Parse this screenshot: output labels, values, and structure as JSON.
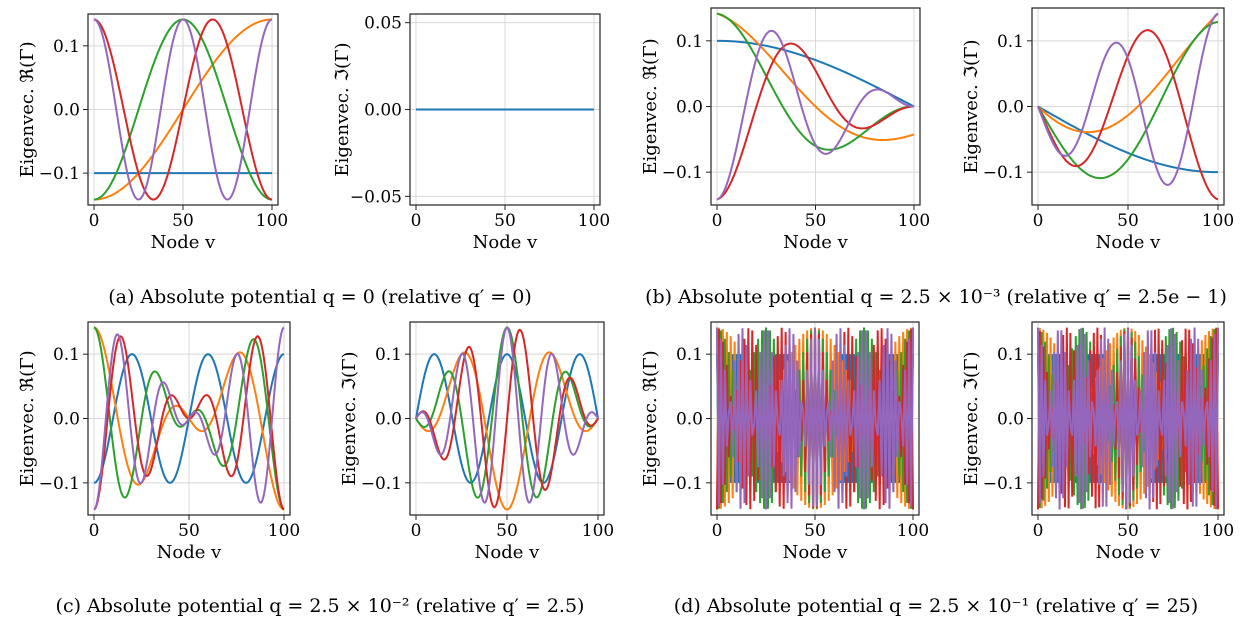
{
  "captions": [
    "(a) Absolute potential q = 0 (relative q′ = 0)",
    "(b) Absolute potential q = 2.5 × 10⁻³ (relative q′ = 2.5e − 1)",
    "(c) Absolute potential q = 2.5 × 10⁻² (relative q′ = 2.5)",
    "(d) Absolute potential q = 2.5 × 10⁻¹ (relative q′ = 25)"
  ],
  "colors": [
    "#1f77b4",
    "#ff7f0e",
    "#2ca02c",
    "#d62728",
    "#9467bd"
  ],
  "chart_data": [
    {
      "type": "line",
      "panel": "a-left",
      "xlabel": "Node v",
      "ylabel": "Eigenvec. ℜ(Γ)",
      "xlim": [
        0,
        100
      ],
      "ylim": [
        -0.15,
        0.15
      ],
      "xticks": [
        "0",
        "50",
        "100"
      ],
      "yticks": [
        "−0.1",
        "0.0",
        "0.1"
      ],
      "series": [
        {
          "values_at_x": {
            "0": -0.1,
            "100": -0.1
          }
        },
        {
          "values_at_x": {
            "0": -0.141,
            "50": 0.0,
            "100": 0.141
          }
        },
        {
          "values_at_x": {
            "0": -0.141,
            "50": 0.141,
            "100": -0.141
          }
        },
        {
          "values_at_x": {
            "0": 0.141,
            "33": -0.141,
            "67": 0.141,
            "100": -0.141
          }
        },
        {
          "values_at_x": {
            "0": 0.141,
            "25": -0.141,
            "50": 0.141,
            "75": -0.141,
            "100": 0.141
          }
        }
      ]
    },
    {
      "type": "line",
      "panel": "a-right",
      "xlabel": "Node v",
      "ylabel": "Eigenvec. ℑ(Γ)",
      "xlim": [
        0,
        100
      ],
      "ylim": [
        -0.055,
        0.055
      ],
      "xticks": [
        "0",
        "50",
        "100"
      ],
      "yticks": [
        "−0.05",
        "0.00",
        "0.05"
      ],
      "series": [
        {
          "values_at_x": {
            "0": 0.0,
            "100": 0.0
          }
        }
      ]
    },
    {
      "type": "line",
      "panel": "b-left",
      "xlabel": "Node v",
      "ylabel": "Eigenvec. ℜ(Γ)",
      "xlim": [
        0,
        100
      ],
      "ylim": [
        -0.15,
        0.15
      ],
      "xticks": [
        "0",
        "50",
        "100"
      ],
      "yticks": [
        "−0.1",
        "0.0",
        "0.1"
      ],
      "series": [
        {
          "values_at_x": {
            "0": 0.1,
            "50": 0.07,
            "100": 0.0
          }
        },
        {
          "values_at_x": {
            "0": 0.141,
            "50": 0.0,
            "75": -0.04,
            "100": 0.0
          }
        },
        {
          "values_at_x": {
            "0": 0.141,
            "48": -0.101,
            "100": 0.0
          }
        },
        {
          "values_at_x": {
            "0": -0.141,
            "32": 0.122,
            "66": -0.07,
            "100": 0.0
          }
        },
        {
          "values_at_x": {
            "0": -0.141,
            "24": 0.13,
            "50": -0.1,
            "74": 0.055,
            "100": 0.0
          }
        }
      ]
    },
    {
      "type": "line",
      "panel": "b-right",
      "xlabel": "Node v",
      "ylabel": "Eigenvec. ℑ(Γ)",
      "xlim": [
        0,
        100
      ],
      "ylim": [
        -0.15,
        0.15
      ],
      "xticks": [
        "0",
        "50",
        "100"
      ],
      "yticks": [
        "−0.1",
        "0.0",
        "0.1"
      ],
      "series": [
        {
          "values_at_x": {
            "0": 0.0,
            "50": -0.07,
            "100": -0.1
          }
        },
        {
          "values_at_x": {
            "0": 0.0,
            "25": -0.04,
            "50": 0.0,
            "100": 0.141
          }
        },
        {
          "values_at_x": {
            "0": 0.0,
            "52": 0.102,
            "100": -0.141
          }
        },
        {
          "values_at_x": {
            "0": 0.0,
            "34": -0.072,
            "68": 0.122,
            "100": -0.141
          }
        },
        {
          "values_at_x": {
            "0": 0.0,
            "50": 0.1,
            "76": -0.13,
            "100": 0.141
          }
        }
      ]
    },
    {
      "type": "line",
      "panel": "c-left",
      "xlabel": "Node v",
      "ylabel": "Eigenvec. ℜ(Γ)",
      "xlim": [
        0,
        100
      ],
      "ylim": [
        -0.15,
        0.15
      ],
      "xticks": [
        "0",
        "50",
        "100"
      ],
      "yticks": [
        "−0.1",
        "0.0",
        "0.1"
      ],
      "series": [
        {
          "values_at_x": {
            "0": -0.1,
            "20": 0.1,
            "40": -0.1,
            "60": 0.1,
            "80": -0.1,
            "100": 0.1
          }
        },
        {
          "values_at_x": {
            "0": 0.141,
            "25": -0.11,
            "50": 0.0,
            "75": 0.05,
            "100": -0.141
          }
        },
        {
          "values_at_x": {
            "0": 0.141,
            "17": -0.06,
            "33": 0.01,
            "50": 0.0,
            "67": 0.12,
            "100": -0.141
          }
        },
        {
          "values_at_x": {
            "0": -0.141,
            "30": 0.122,
            "50": 0.0,
            "100": 0.141
          }
        },
        {
          "values_at_x": {
            "0": -0.141,
            "20": -0.125,
            "50": 0.0,
            "85": 0.12,
            "100": 0.141
          }
        }
      ]
    },
    {
      "type": "line",
      "panel": "c-right",
      "xlabel": "Node v",
      "ylabel": "Eigenvec. ℑ(Γ)",
      "xlim": [
        0,
        100
      ],
      "ylim": [
        -0.15,
        0.15
      ],
      "xticks": [
        "0",
        "50",
        "100"
      ],
      "yticks": [
        "−0.1",
        "0.0",
        "0.1"
      ],
      "series": [
        {
          "values_at_x": {
            "0": 0.0,
            "10": 0.1,
            "30": -0.1,
            "50": 0.1,
            "70": -0.1,
            "90": 0.1,
            "100": 0.0
          }
        },
        {
          "values_at_x": {
            "0": 0.0,
            "12": -0.135,
            "50": 0.0,
            "90": 0.135,
            "100": 0.0
          }
        },
        {
          "values_at_x": {
            "0": 0.0,
            "10": -0.12,
            "50": 0.141,
            "90": -0.12,
            "100": 0.0
          }
        },
        {
          "values_at_x": {
            "0": 0.0,
            "12": 0.1,
            "30": 0.13,
            "50": 0.0,
            "70": -0.13,
            "100": 0.0
          }
        },
        {
          "values_at_x": {
            "0": 0.0,
            "15": 0.05,
            "32": 0.14,
            "50": -0.02,
            "85": 0.1,
            "100": 0.0
          }
        }
      ]
    },
    {
      "type": "line",
      "panel": "d-left",
      "xlabel": "Node v",
      "ylabel": "Eigenvec. ℜ(Γ)",
      "xlim": [
        0,
        100
      ],
      "ylim": [
        -0.15,
        0.15
      ],
      "xticks": [
        "0",
        "50",
        "100"
      ],
      "yticks": [
        "−0.1",
        "0.0",
        "0.1"
      ],
      "series": [
        {
          "values_at_x": {
            "0": 0.1,
            "100": -0.1
          }
        },
        {
          "values_at_x": {
            "0": 0.141,
            "100": -0.141
          }
        },
        {
          "values_at_x": {
            "0": -0.141,
            "100": 0.141
          }
        },
        {
          "values_at_x": {
            "0": -0.141,
            "100": 0.141
          }
        },
        {
          "values_at_x": {
            "0": 0.141,
            "100": -0.141
          }
        }
      ]
    },
    {
      "type": "line",
      "panel": "d-right",
      "xlabel": "Node v",
      "ylabel": "Eigenvec. ℑ(Γ)",
      "xlim": [
        0,
        100
      ],
      "ylim": [
        -0.15,
        0.15
      ],
      "xticks": [
        "0",
        "50",
        "100"
      ],
      "yticks": [
        "−0.1",
        "0.0",
        "0.1"
      ],
      "series": [
        {
          "values_at_x": {
            "0": 0.0,
            "100": 0.0
          }
        },
        {
          "values_at_x": {
            "0": 0.0,
            "100": 0.0
          }
        },
        {
          "values_at_x": {
            "0": 0.0,
            "100": 0.0
          }
        },
        {
          "values_at_x": {
            "0": 0.0,
            "100": 0.0
          }
        },
        {
          "values_at_x": {
            "0": 0.0,
            "100": 0.0
          }
        }
      ]
    }
  ]
}
